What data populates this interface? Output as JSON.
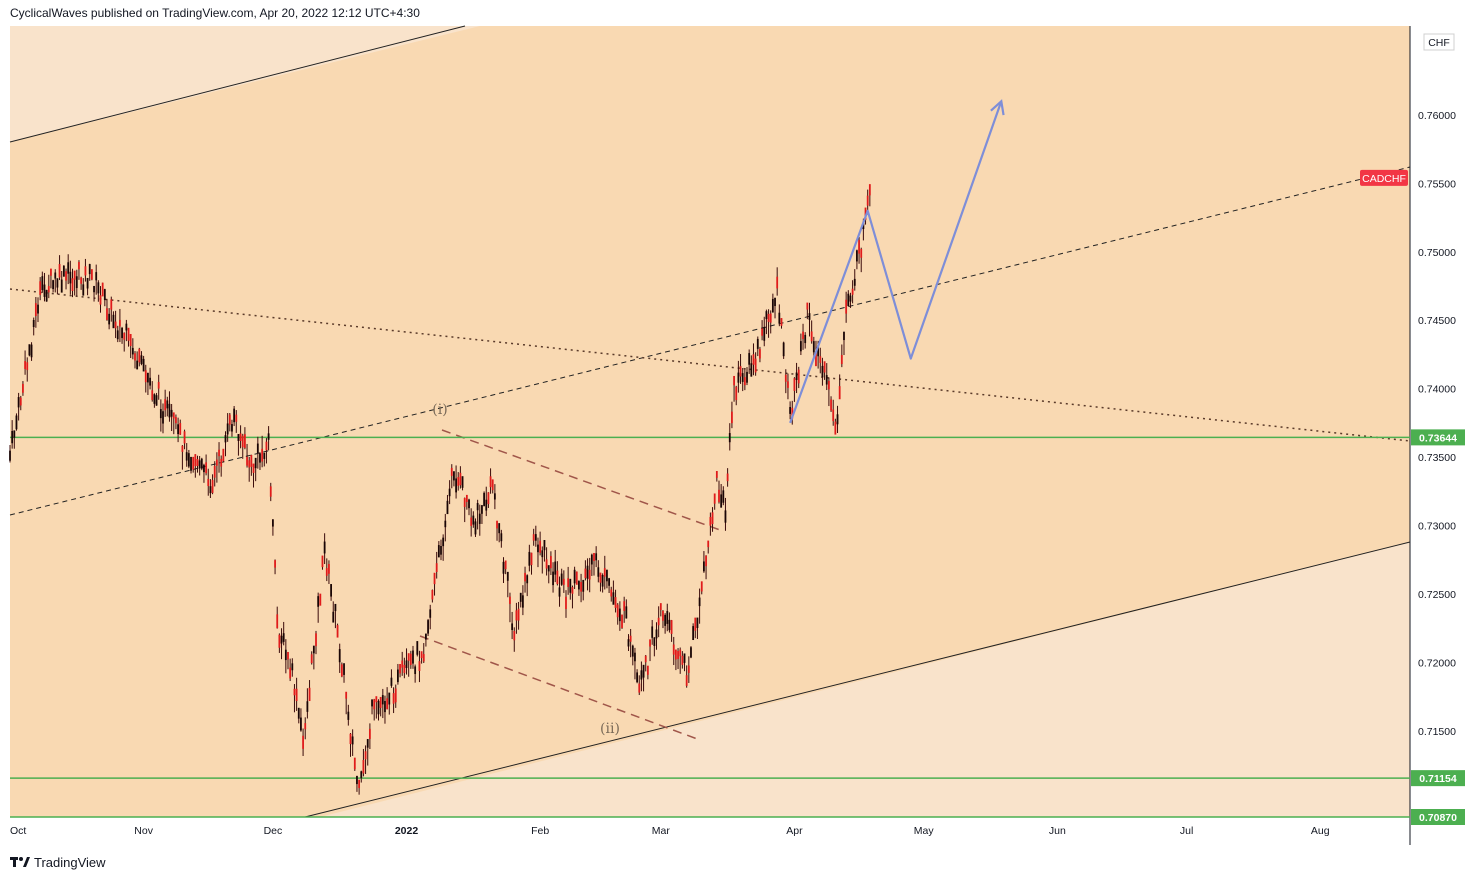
{
  "header": {
    "text": "CyclicalWaves published on TradingView.com, Apr 20, 2022 12:12 UTC+4:30"
  },
  "footer": {
    "brand": "TradingView",
    "logo_icon": "tradingview-logo-icon"
  },
  "chart_data": {
    "type": "candlestick",
    "symbol": "CADCHF",
    "currency": "CHF",
    "x_ticks": [
      "Oct",
      "Nov",
      "Dec",
      "2022",
      "Feb",
      "Mar",
      "Apr",
      "May",
      "Jun",
      "Jul",
      "Aug"
    ],
    "y_ticks": [
      0.715,
      0.72,
      0.725,
      0.73,
      0.735,
      0.74,
      0.745,
      0.75,
      0.755,
      0.76
    ],
    "y_tick_labels": [
      "0.71500",
      "0.72000",
      "0.72500",
      "0.73000",
      "0.73500",
      "0.74000",
      "0.74500",
      "0.75000",
      "0.75500",
      "0.76000"
    ],
    "ylim": [
      0.7087,
      0.7665
    ],
    "horizontal_levels": [
      {
        "value": 0.73644,
        "label": "0.73644",
        "color": "#4caf50"
      },
      {
        "value": 0.71154,
        "label": "0.71154",
        "color": "#4caf50"
      },
      {
        "value": 0.7087,
        "label": "0.70870",
        "color": "#4caf50"
      }
    ],
    "last_price_label": {
      "text": "CADCHF",
      "value": 0.7554,
      "color": "#f23645"
    },
    "wave_labels": [
      "(i)",
      "(ii)"
    ],
    "price_path": [
      [
        "2021-10-01",
        0.735
      ],
      [
        "2021-10-04",
        0.74
      ],
      [
        "2021-10-08",
        0.747
      ],
      [
        "2021-10-13",
        0.748
      ],
      [
        "2021-10-20",
        0.748
      ],
      [
        "2021-10-27",
        0.744
      ],
      [
        "2021-11-03",
        0.74
      ],
      [
        "2021-11-10",
        0.736
      ],
      [
        "2021-11-17",
        0.733
      ],
      [
        "2021-11-22",
        0.738
      ],
      [
        "2021-11-26",
        0.734
      ],
      [
        "2021-11-30",
        0.736
      ],
      [
        "2021-12-02",
        0.723
      ],
      [
        "2021-12-06",
        0.718
      ],
      [
        "2021-12-08",
        0.714
      ],
      [
        "2021-12-13",
        0.728
      ],
      [
        "2021-12-17",
        0.72
      ],
      [
        "2021-12-21",
        0.71
      ],
      [
        "2021-12-24",
        0.716
      ],
      [
        "2021-12-29",
        0.718
      ],
      [
        "2022-01-05",
        0.721
      ],
      [
        "2022-01-12",
        0.734
      ],
      [
        "2022-01-17",
        0.73
      ],
      [
        "2022-01-21",
        0.733
      ],
      [
        "2022-01-26",
        0.722
      ],
      [
        "2022-01-31",
        0.729
      ],
      [
        "2022-02-07",
        0.725
      ],
      [
        "2022-02-14",
        0.727
      ],
      [
        "2022-02-21",
        0.723
      ],
      [
        "2022-02-24",
        0.7175
      ],
      [
        "2022-03-01",
        0.724
      ],
      [
        "2022-03-07",
        0.719
      ],
      [
        "2022-03-10",
        0.724
      ],
      [
        "2022-03-14",
        0.733
      ],
      [
        "2022-03-16",
        0.731
      ],
      [
        "2022-03-18",
        0.74
      ],
      [
        "2022-03-23",
        0.742
      ],
      [
        "2022-03-28",
        0.747
      ],
      [
        "2022-03-31",
        0.738
      ],
      [
        "2022-04-04",
        0.745
      ],
      [
        "2022-04-07",
        0.742
      ],
      [
        "2022-04-11",
        0.737
      ],
      [
        "2022-04-13",
        0.746
      ],
      [
        "2022-04-15",
        0.748
      ],
      [
        "2022-04-18",
        0.753
      ],
      [
        "2022-04-19",
        0.755
      ]
    ],
    "projection": [
      [
        "2022-03-31",
        0.7375
      ],
      [
        "2022-04-18",
        0.753
      ],
      [
        "2022-04-28",
        0.7422
      ],
      [
        "2022-05-19",
        0.761
      ]
    ]
  }
}
